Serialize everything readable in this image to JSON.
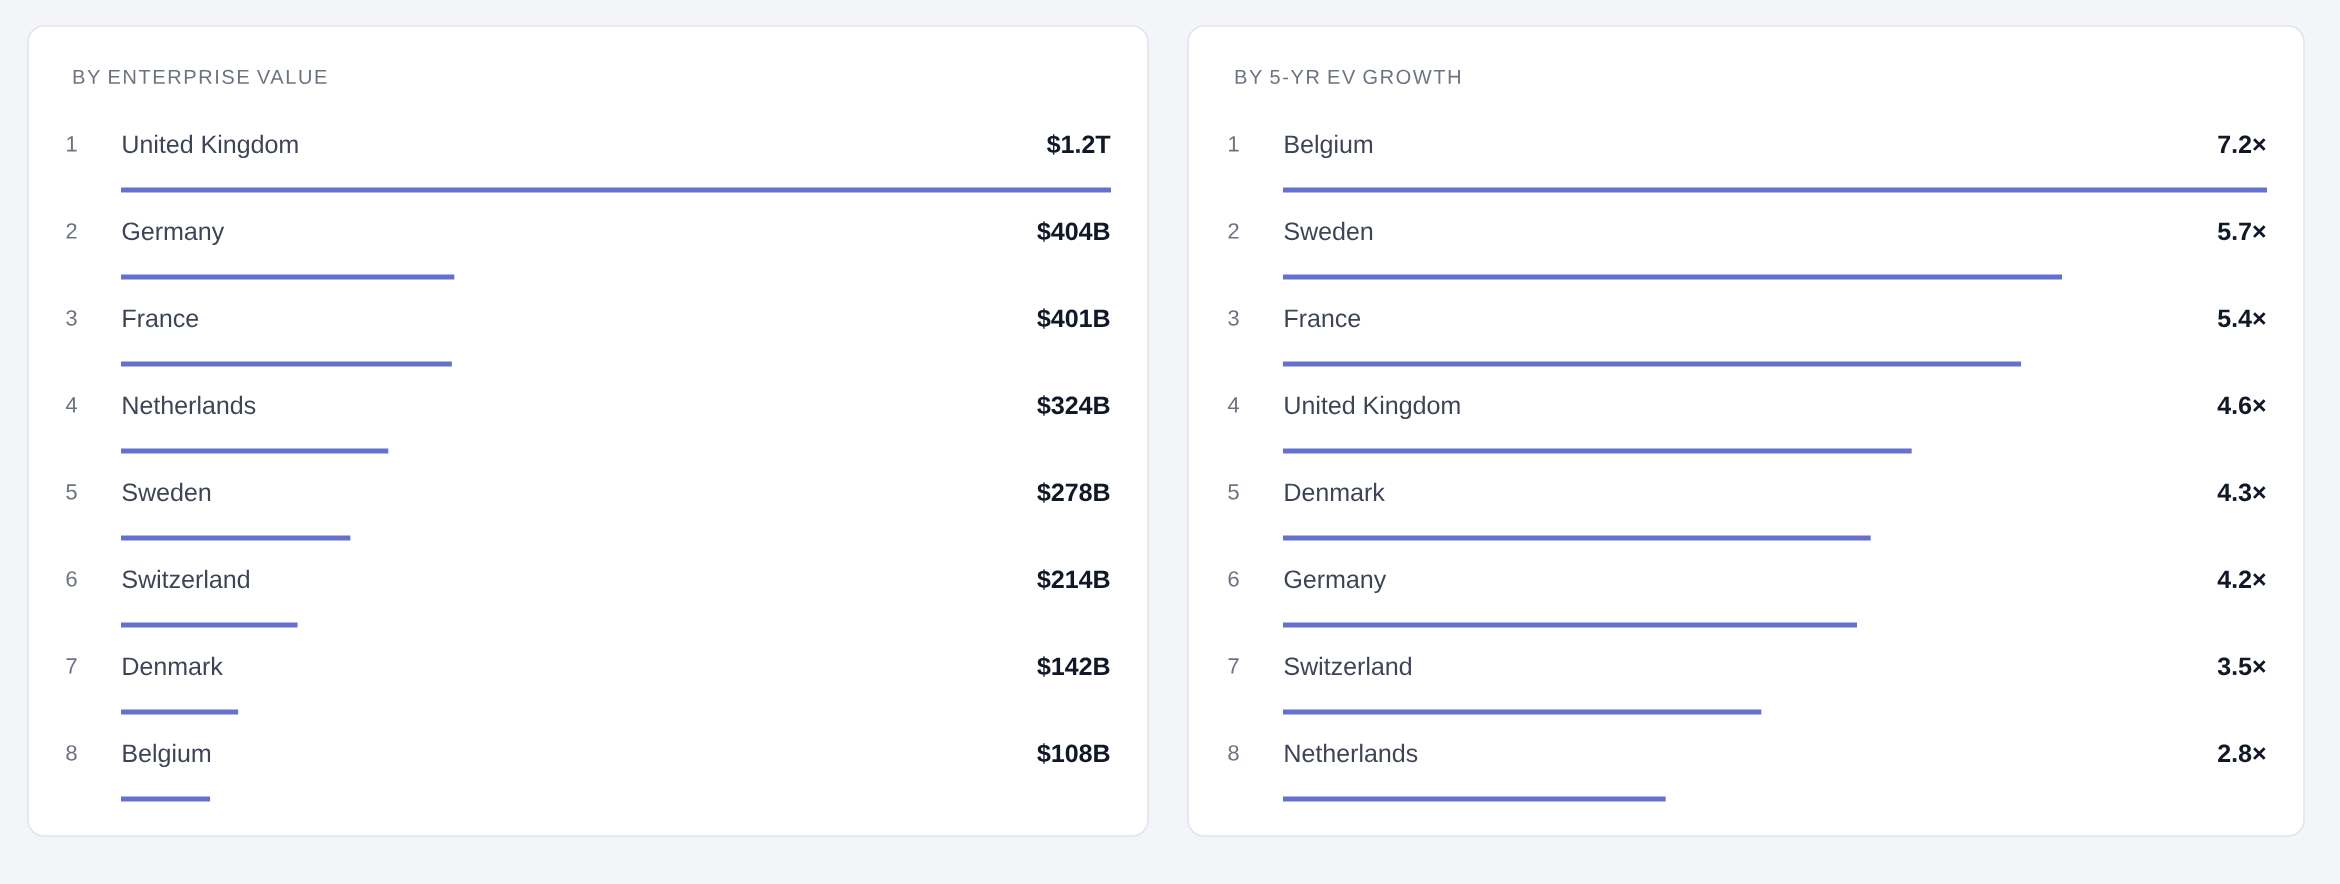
{
  "chart_data": [
    {
      "type": "bar",
      "orientation": "horizontal",
      "title": "BY ENTERPRISE VALUE",
      "categories": [
        "United Kingdom",
        "Germany",
        "France",
        "Netherlands",
        "Sweden",
        "Switzerland",
        "Denmark",
        "Belgium"
      ],
      "values": [
        1200000000000.0,
        404000000000.0,
        401000000000.0,
        324000000000.0,
        278000000000.0,
        214000000000.0,
        142000000000.0,
        108000000000.0
      ],
      "value_labels": [
        "$1.2T",
        "$404B",
        "$401B",
        "$324B",
        "$278B",
        "$214B",
        "$142B",
        "$108B"
      ],
      "color": "#6570cf",
      "annotations": [
        "1",
        "2",
        "3",
        "4",
        "5",
        "6",
        "7",
        "8"
      ]
    },
    {
      "type": "bar",
      "orientation": "horizontal",
      "title": "BY 5-YR EV GROWTH",
      "categories": [
        "Belgium",
        "Sweden",
        "France",
        "United Kingdom",
        "Denmark",
        "Germany",
        "Switzerland",
        "Netherlands"
      ],
      "values": [
        7.2,
        5.7,
        5.4,
        4.6,
        4.3,
        4.2,
        3.5,
        2.8
      ],
      "value_labels": [
        "7.2×",
        "5.7×",
        "5.4×",
        "4.6×",
        "4.3×",
        "4.2×",
        "3.5×",
        "2.8×"
      ],
      "color": "#6570cf",
      "annotations": [
        "1",
        "2",
        "3",
        "4",
        "5",
        "6",
        "7",
        "8"
      ]
    }
  ]
}
